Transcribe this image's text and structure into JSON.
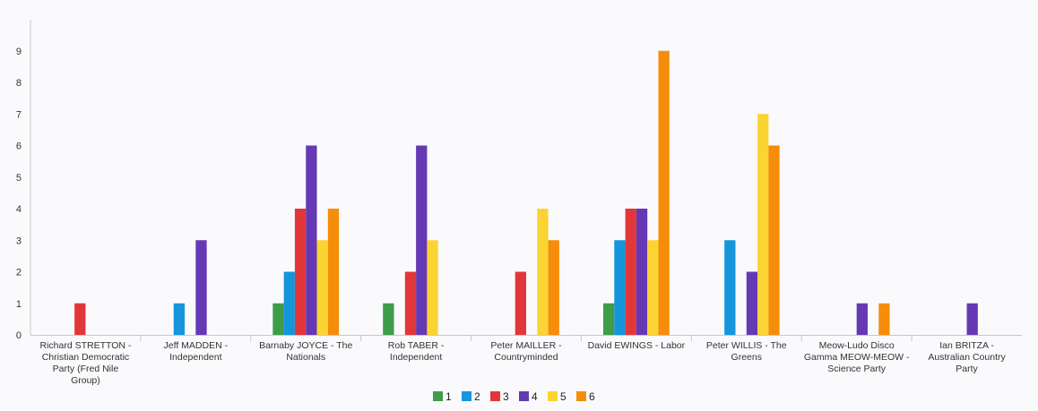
{
  "chart_data": {
    "type": "bar",
    "categories": [
      [
        "Richard STRETTON -",
        "Christian Democratic",
        "Party (Fred Nile",
        "Group)"
      ],
      [
        "Jeff MADDEN -",
        "Independent"
      ],
      [
        "Barnaby JOYCE - The",
        "Nationals"
      ],
      [
        "Rob TABER -",
        "Independent"
      ],
      [
        "Peter MAILLER -",
        "Countryminded"
      ],
      [
        "David EWINGS - Labor"
      ],
      [
        "Peter WILLIS - The",
        "Greens"
      ],
      [
        "Meow-Ludo Disco",
        "Gamma MEOW-MEOW -",
        "Science Party"
      ],
      [
        "Ian BRITZA -",
        "Australian Country",
        "Party"
      ]
    ],
    "series": [
      {
        "name": "1",
        "color": "#3f9c49",
        "values": [
          0,
          0,
          1,
          1,
          0,
          1,
          0,
          0,
          0
        ]
      },
      {
        "name": "2",
        "color": "#1595db",
        "values": [
          0,
          1,
          2,
          0,
          0,
          3,
          3,
          0,
          0
        ]
      },
      {
        "name": "3",
        "color": "#e2373a",
        "values": [
          1,
          0,
          4,
          2,
          2,
          4,
          0,
          0,
          0
        ]
      },
      {
        "name": "4",
        "color": "#6539b3",
        "values": [
          0,
          3,
          6,
          6,
          0,
          4,
          2,
          1,
          1
        ]
      },
      {
        "name": "5",
        "color": "#fbd434",
        "values": [
          0,
          0,
          3,
          3,
          4,
          3,
          7,
          0,
          0
        ]
      },
      {
        "name": "6",
        "color": "#f68d0a",
        "values": [
          0,
          0,
          4,
          0,
          3,
          9,
          6,
          1,
          0
        ]
      }
    ],
    "yticks": [
      0,
      1,
      2,
      3,
      4,
      5,
      6,
      7,
      8,
      9
    ],
    "ylim": [
      0,
      9.5
    ],
    "grid": false,
    "legend": "bottom-center"
  }
}
